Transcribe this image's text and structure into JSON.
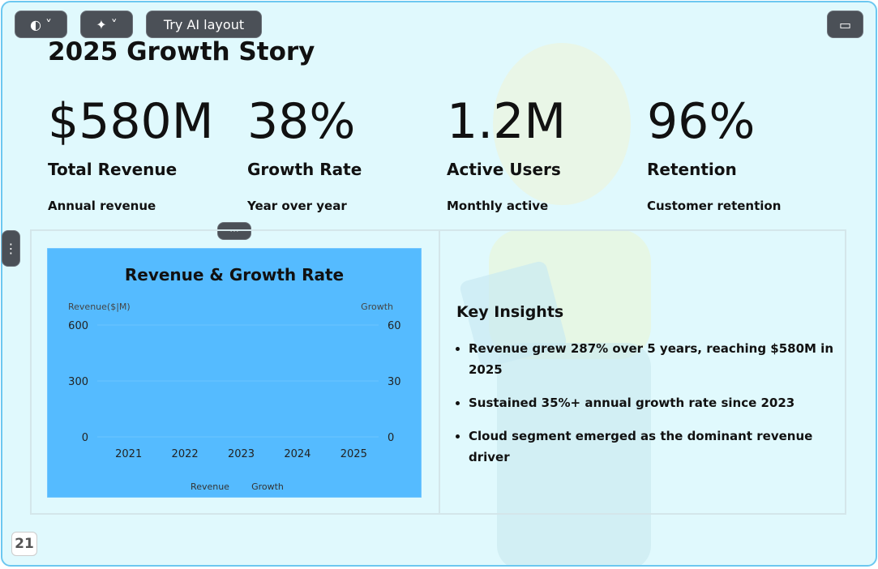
{
  "toolbar": {
    "ai_layout": "Try AI layout"
  },
  "slide": {
    "title": "2025 Growth Story",
    "stats": [
      {
        "value": "$580M",
        "label": "Total Revenue",
        "caption": "Annual revenue"
      },
      {
        "value": "38%",
        "label": "Growth Rate",
        "caption": "Year over year"
      },
      {
        "value": "1.2M",
        "label": "Active Users",
        "caption": "Monthly active"
      },
      {
        "value": "96%",
        "label": "Retention",
        "caption": "Customer retention"
      }
    ],
    "chart": {
      "type": "line",
      "title": "Revenue & Growth Rate",
      "y_label": "Revenue($|M)",
      "y2_label": "Growth",
      "categories": [
        "2021",
        "2022",
        "2023",
        "2024",
        "2025"
      ],
      "ylim": [
        0,
        600
      ],
      "yticks": [
        0,
        300,
        600
      ],
      "y2lim": [
        0,
        60
      ],
      "y2ticks": [
        0,
        30,
        60
      ],
      "legend": [
        "Revenue",
        "Growth"
      ],
      "grid": true
    },
    "insights": {
      "title": "Key Insights",
      "items": [
        "Revenue grew 287% over 5 years, reaching $580M in 2025",
        "Sustained 35%+ annual growth rate since 2023",
        "Cloud segment emerged as the dominant revenue driver"
      ]
    },
    "page_number": "21"
  }
}
